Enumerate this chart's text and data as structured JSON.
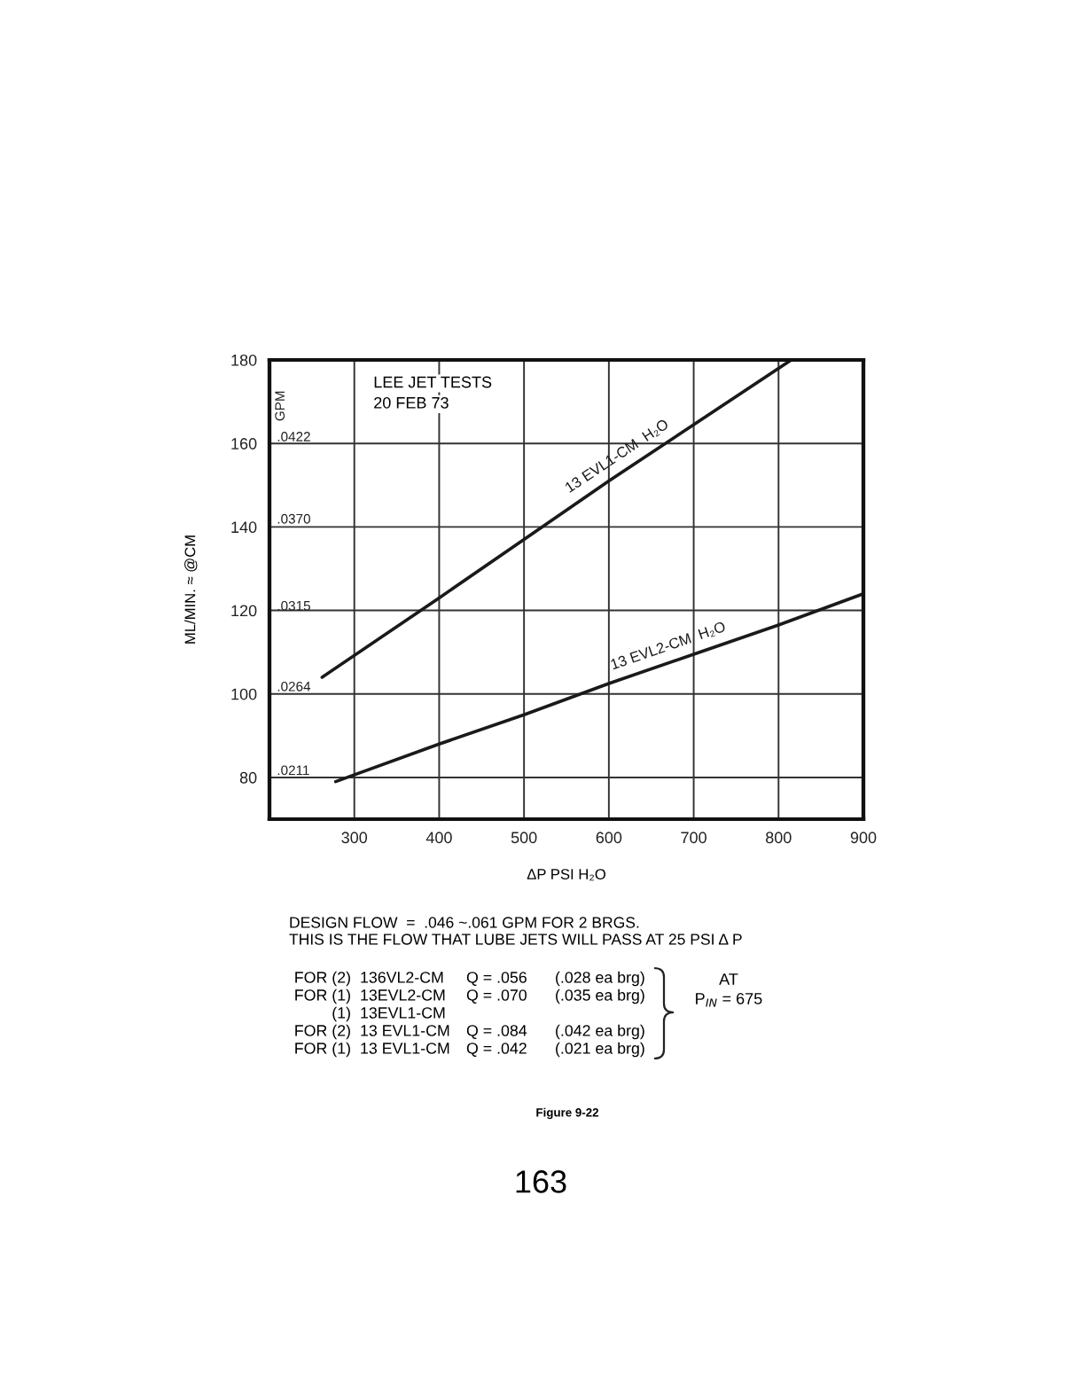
{
  "chart_data": {
    "type": "line",
    "title": "LEE JET TESTS",
    "subtitle": "20 FEB 73",
    "xlabel": "ΔP PSI H₂O",
    "ylabel": "ML/MIN. ≈ @CM",
    "y2label": "GPM",
    "xlim": [
      200,
      900
    ],
    "xticks": [
      300,
      400,
      500,
      600,
      700,
      800,
      900
    ],
    "ylim": [
      70,
      180
    ],
    "yticks": [
      80,
      100,
      120,
      140,
      160,
      180
    ],
    "y2lim": [
      0.01848,
      0.04752
    ],
    "y2ticks": [
      {
        "value": 0.0211,
        "label": ".0211"
      },
      {
        "value": 0.0264,
        "label": ".0264"
      },
      {
        "value": 0.0315,
        "label": ".0315"
      },
      {
        "value": 0.037,
        "label": ".0370"
      },
      {
        "value": 0.0422,
        "label": ".0422"
      }
    ],
    "grid": true,
    "legend": false,
    "marker": "none",
    "line_style": "solid",
    "series": [
      {
        "name": "13 EVL1-CM  H₂O",
        "color": "#1a1a1a",
        "x": [
          262,
          400,
          500,
          600,
          700,
          815
        ],
        "values": [
          104,
          123,
          137,
          151,
          164.5,
          180
        ]
      },
      {
        "name": "13 EVL2-CM  H₂O",
        "color": "#1a1a1a",
        "x": [
          278,
          400,
          500,
          600,
          700,
          800,
          900
        ],
        "values": [
          79,
          88,
          95,
          102.5,
          109.5,
          116.5,
          124
        ]
      }
    ],
    "annotations": [
      "DESIGN FLOW  =  .046 ~.061 GPM FOR 2 BRGS.",
      "THIS IS THE FLOW THAT LUBE JETS WILL PASS AT 25 PSI Δ P",
      "FOR (2)  136VL2-CM  Q = .056  (.028 ea brg)",
      "FOR (1)  13EVL2-CM  Q = .070  (.035 ea brg)",
      "(1)  13EVL1-CM",
      "FOR (2)  13 EVL1-CM  Q = .084  (.042 ea brg)",
      "FOR (1)  13 EVL1-CM  Q = .042  (.021 ea brg)",
      "AT",
      "P$_{IN}$ = 675",
      "Figure 9-22",
      "163"
    ]
  }
}
